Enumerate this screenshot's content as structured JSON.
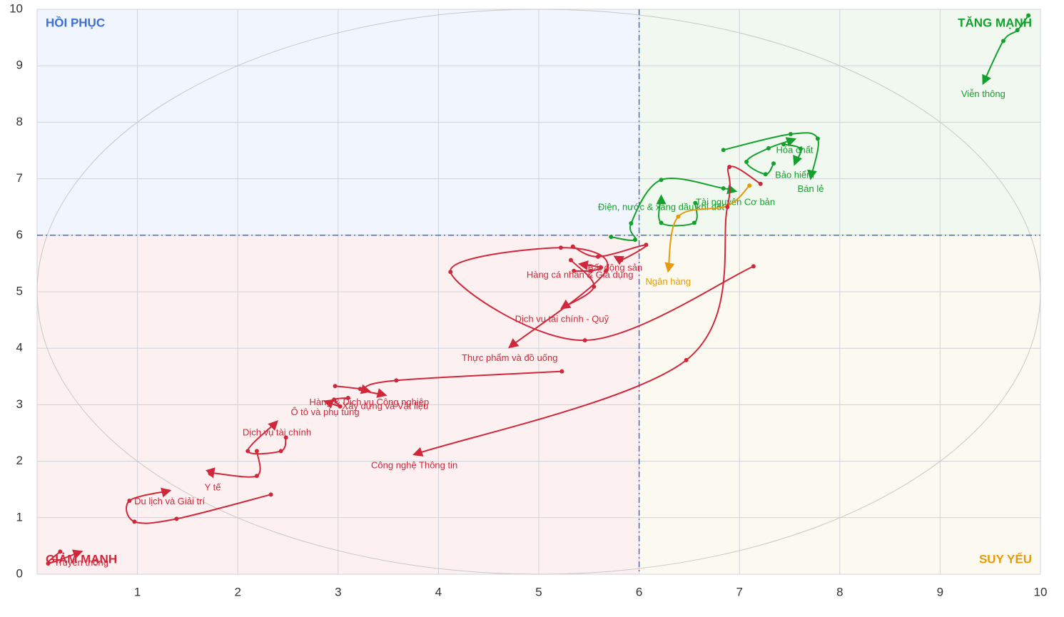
{
  "chart_data": {
    "type": "rotation",
    "xlim": [
      0,
      10
    ],
    "ylim": [
      0,
      10
    ],
    "xticks": [
      1,
      2,
      3,
      4,
      5,
      6,
      7,
      8,
      9,
      10
    ],
    "yticks": [
      0,
      1,
      2,
      3,
      4,
      5,
      6,
      7,
      8,
      9,
      10
    ],
    "grid": true,
    "center": [
      6,
      6
    ],
    "quadrants": [
      {
        "label": "HỒI PHỤC",
        "color": "#3b6fd8"
      },
      {
        "label": "TĂNG MẠNH",
        "color": "#14a02c"
      },
      {
        "label": "GIẢM MẠNH",
        "color": "#d0283a"
      },
      {
        "label": "SUY YẾU",
        "color": "#e39b0c"
      }
    ],
    "series": [
      {
        "name": "Viễn thông",
        "color": "#14a02c",
        "x": [
          9.88,
          9.77,
          9.63,
          9.43
        ],
        "y": [
          9.89,
          9.63,
          9.44,
          8.69
        ]
      },
      {
        "name": "Hóa chất",
        "color": "#14a02c",
        "x": [
          7.34,
          7.26,
          7.07,
          7.29,
          7.55
        ],
        "y": [
          7.27,
          7.08,
          7.3,
          7.54,
          7.7
        ]
      },
      {
        "name": "Bảo hiểm",
        "color": "#14a02c",
        "x": [
          7.44,
          7.61,
          7.55
        ],
        "y": [
          7.61,
          7.53,
          7.26
        ]
      },
      {
        "name": "Bán lẻ",
        "color": "#14a02c",
        "x": [
          6.84,
          7.51,
          7.78,
          7.71
        ],
        "y": [
          7.51,
          7.79,
          7.71,
          7.01
        ]
      },
      {
        "name": "Tài nguyên Cơ bản",
        "color": "#14a02c",
        "x": [
          5.72,
          5.96,
          5.92,
          6.22,
          6.84,
          6.96
        ],
        "y": [
          5.97,
          5.92,
          6.21,
          6.98,
          6.83,
          6.78
        ]
      },
      {
        "name": "Điện, nước & xăng dầu khí đốt",
        "color": "#14a02c",
        "x": [
          6.56,
          6.55,
          6.22,
          6.22
        ],
        "y": [
          6.57,
          6.22,
          6.22,
          6.69
        ]
      },
      {
        "name": "Ngân hàng",
        "color": "#e39b0c",
        "x": [
          7.1,
          6.88,
          6.39,
          6.29
        ],
        "y": [
          6.88,
          6.52,
          6.33,
          5.37
        ]
      },
      {
        "name": "Bất động sản",
        "color": "#d0283a",
        "x": [
          5.34,
          5.59,
          6.07,
          5.82,
          5.76
        ],
        "y": [
          5.8,
          5.62,
          5.83,
          5.56,
          5.62
        ]
      },
      {
        "name": "Hàng cá nhân & Gia dụng",
        "color": "#d0283a",
        "x": [
          5.35,
          5.52,
          5.62,
          5.41
        ],
        "y": [
          5.37,
          5.37,
          5.43,
          5.49
        ]
      },
      {
        "name": "Dịch vụ tài chính - Quỹ",
        "color": "#d0283a",
        "x": [
          5.32,
          5.55,
          5.23
        ],
        "y": [
          5.56,
          5.09,
          4.71
        ]
      },
      {
        "name": "Thực phẩm và đồ uống",
        "color": "#d0283a",
        "x": [
          7.14,
          5.46,
          4.12,
          5.22,
          5.67,
          4.71
        ],
        "y": [
          5.45,
          4.14,
          5.35,
          5.78,
          5.37,
          4.02
        ]
      },
      {
        "name": "Công nghệ Thông tin",
        "color": "#d0283a",
        "x": [
          7.21,
          6.9,
          6.88,
          6.47,
          3.76
        ],
        "y": [
          6.91,
          7.21,
          6.5,
          3.79,
          2.12
        ]
      },
      {
        "name": "Xây dựng và Vật liệu",
        "color": "#d0283a",
        "x": [
          5.23,
          3.58,
          3.26,
          3.47
        ],
        "y": [
          3.59,
          3.43,
          3.27,
          3.17
        ]
      },
      {
        "name": "Hàng & Dịch vụ Công nghiệp",
        "color": "#d0283a",
        "x": [
          2.97,
          3.22,
          3.31
        ],
        "y": [
          3.33,
          3.28,
          3.24
        ]
      },
      {
        "name": "Ô tô và phụ tùng",
        "color": "#d0283a",
        "x": [
          3.1,
          2.96,
          3.02,
          2.87
        ],
        "y": [
          3.12,
          3.09,
          2.97,
          3.06
        ]
      },
      {
        "name": "Dịch vụ tài chính",
        "color": "#d0283a",
        "x": [
          2.48,
          2.43,
          2.1,
          2.39
        ],
        "y": [
          2.42,
          2.18,
          2.18,
          2.7
        ]
      },
      {
        "name": "Y tế",
        "color": "#d0283a",
        "x": [
          2.19,
          2.19,
          1.74,
          1.75
        ],
        "y": [
          2.18,
          1.74,
          1.79,
          1.73
        ]
      },
      {
        "name": "Du lịch và Giải trí",
        "color": "#d0283a",
        "x": [
          2.33,
          1.39,
          0.97,
          0.92,
          1.32
        ],
        "y": [
          1.41,
          0.98,
          0.93,
          1.3,
          1.48
        ]
      },
      {
        "name": "Truyền thông",
        "color": "#d0283a",
        "x": [
          0.23,
          0.11,
          0.44
        ],
        "y": [
          0.4,
          0.19,
          0.4
        ]
      }
    ]
  }
}
